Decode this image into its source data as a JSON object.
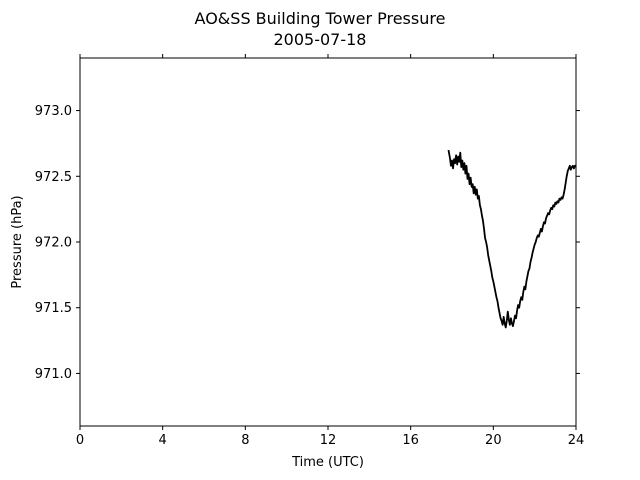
{
  "chart_data": {
    "type": "line",
    "title": "AO&SS Building Tower Pressure",
    "subtitle": "2005-07-18",
    "xlabel": "Time (UTC)",
    "ylabel": "Pressure (hPa)",
    "xlim": [
      0,
      24
    ],
    "ylim": [
      970.6,
      973.4
    ],
    "x_ticks": [
      0,
      4,
      8,
      12,
      16,
      20,
      24
    ],
    "x_tick_labels": [
      "0",
      "4",
      "8",
      "12",
      "16",
      "20",
      "24"
    ],
    "y_ticks": [
      971.0,
      971.5,
      972.0,
      972.5,
      973.0
    ],
    "y_tick_labels": [
      "971.0",
      "971.5",
      "972.0",
      "972.5",
      "973.0"
    ],
    "grid": false,
    "line_color": "#000000",
    "series": [
      {
        "x": [
          17.83,
          17.9,
          17.95,
          18.0,
          18.05,
          18.1,
          18.15,
          18.2,
          18.25,
          18.3,
          18.35,
          18.4,
          18.45,
          18.5,
          18.55,
          18.6,
          18.65,
          18.7,
          18.75,
          18.8,
          18.85,
          18.9,
          18.95,
          19.0,
          19.05,
          19.1,
          19.15,
          19.2,
          19.25,
          19.3,
          19.35,
          19.4,
          19.45,
          19.5,
          19.55,
          19.6,
          19.65,
          19.7,
          19.75,
          19.8,
          19.85,
          19.9,
          19.95,
          20.0,
          20.05,
          20.1,
          20.15,
          20.2,
          20.25,
          20.3,
          20.35,
          20.4,
          20.45,
          20.5,
          20.55,
          20.6,
          20.65,
          20.7,
          20.75,
          20.8,
          20.85,
          20.9,
          20.95,
          21.0,
          21.05,
          21.1,
          21.15,
          21.2,
          21.25,
          21.3,
          21.35,
          21.4,
          21.45,
          21.5,
          21.55,
          21.6,
          21.65,
          21.7,
          21.75,
          21.8,
          21.85,
          21.9,
          21.95,
          22.0,
          22.05,
          22.1,
          22.15,
          22.2,
          22.25,
          22.3,
          22.35,
          22.4,
          22.45,
          22.5,
          22.55,
          22.6,
          22.65,
          22.7,
          22.75,
          22.8,
          22.85,
          22.9,
          22.95,
          23.0,
          23.05,
          23.1,
          23.15,
          23.2,
          23.25,
          23.3,
          23.35,
          23.4,
          23.45,
          23.5,
          23.55,
          23.6,
          23.65,
          23.7,
          23.75,
          23.8,
          23.85,
          23.9,
          23.95,
          24.0
        ],
        "y": [
          972.7,
          972.64,
          972.58,
          972.62,
          972.56,
          972.63,
          972.6,
          972.66,
          972.59,
          972.65,
          972.61,
          972.68,
          972.57,
          972.62,
          972.55,
          972.6,
          972.52,
          972.58,
          972.48,
          972.52,
          972.44,
          972.49,
          972.42,
          972.44,
          972.37,
          972.42,
          972.36,
          972.4,
          972.33,
          972.35,
          972.28,
          972.25,
          972.2,
          972.16,
          972.1,
          972.03,
          972.0,
          971.96,
          971.9,
          971.86,
          971.82,
          971.78,
          971.73,
          971.7,
          971.66,
          971.62,
          971.58,
          971.55,
          971.5,
          971.46,
          971.42,
          971.4,
          971.37,
          971.43,
          971.38,
          971.35,
          971.4,
          971.47,
          971.41,
          971.37,
          971.42,
          971.38,
          971.36,
          971.4,
          971.44,
          971.42,
          971.48,
          971.52,
          971.5,
          971.55,
          971.58,
          971.56,
          971.62,
          971.66,
          971.64,
          971.7,
          971.74,
          971.78,
          971.8,
          971.85,
          971.88,
          971.92,
          971.95,
          971.98,
          972.0,
          972.03,
          972.05,
          972.04,
          972.07,
          972.1,
          972.08,
          972.12,
          972.15,
          972.14,
          972.18,
          972.2,
          972.22,
          972.21,
          972.24,
          972.26,
          972.25,
          972.28,
          972.27,
          972.3,
          972.29,
          972.31,
          972.3,
          972.33,
          972.32,
          972.34,
          972.33,
          972.36,
          972.4,
          972.45,
          972.5,
          972.54,
          972.56,
          972.58,
          972.55,
          972.57,
          972.58,
          972.56,
          972.58,
          972.58
        ]
      }
    ]
  }
}
